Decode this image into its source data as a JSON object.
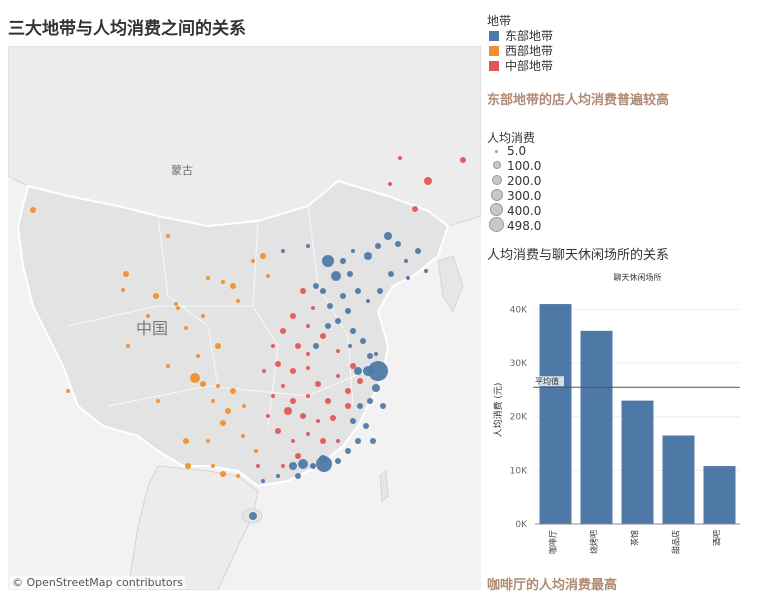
{
  "title": "三大地带与人均消费之间的关系",
  "map": {
    "labels": {
      "mongolia": "蒙古",
      "china": "中国"
    },
    "attribution": "© OpenStreetMap contributors"
  },
  "colors": {
    "east": "#4e79a7",
    "west": "#f28e2b",
    "central": "#e15759"
  },
  "legend": {
    "title": "地带",
    "items": [
      {
        "label": "东部地带",
        "color": "#4e79a7"
      },
      {
        "label": "西部地带",
        "color": "#f28e2b"
      },
      {
        "label": "中部地带",
        "color": "#e15759"
      }
    ]
  },
  "callout_top": "东部地带的店人均消费普遍较高",
  "size_legend": {
    "title": "人均消费",
    "values": [
      "5.0",
      "100.0",
      "200.0",
      "300.0",
      "400.0",
      "498.0"
    ]
  },
  "bar_section_title": "人均消费与聊天休闲场所的关系",
  "callout_bottom": "咖啡厅的人均消费最高",
  "chart_data": {
    "type": "bar",
    "title": "聊天休闲场所",
    "ylabel": "人均消费 (元)",
    "categories": [
      "咖啡厅",
      "烧烤吧",
      "茶馆",
      "甜品店",
      "酒吧"
    ],
    "values": [
      41000,
      36000,
      23000,
      16500,
      10800
    ],
    "yticks": [
      "0K",
      "10K",
      "20K",
      "30K",
      "40K"
    ],
    "ylim": [
      0,
      42500
    ],
    "reference_line": {
      "label": "平均值",
      "value": 25500
    },
    "bar_color": "#4e79a7"
  }
}
